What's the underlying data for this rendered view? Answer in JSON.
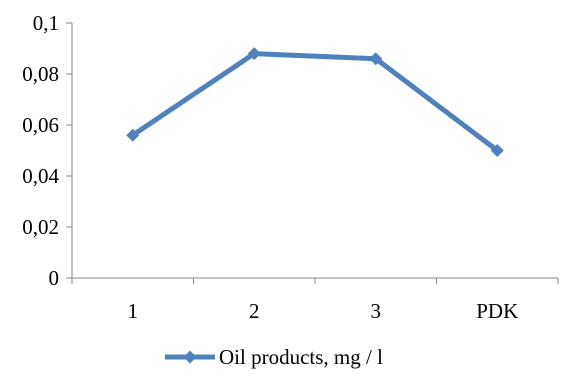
{
  "chart_data": {
    "type": "line",
    "categories": [
      "1",
      "2",
      "3",
      "PDK"
    ],
    "series": [
      {
        "name": "Oil products, mg / l",
        "values": [
          0.056,
          0.088,
          0.086,
          0.05
        ]
      }
    ],
    "y_ticks": [
      "0",
      "0,02",
      "0,04",
      "0,06",
      "0,08",
      "0,1"
    ],
    "ylim": [
      0,
      0.1
    ],
    "grid": false,
    "legend": "bottom",
    "colors": {
      "series": "#4f81bd",
      "axis": "#868686"
    }
  }
}
